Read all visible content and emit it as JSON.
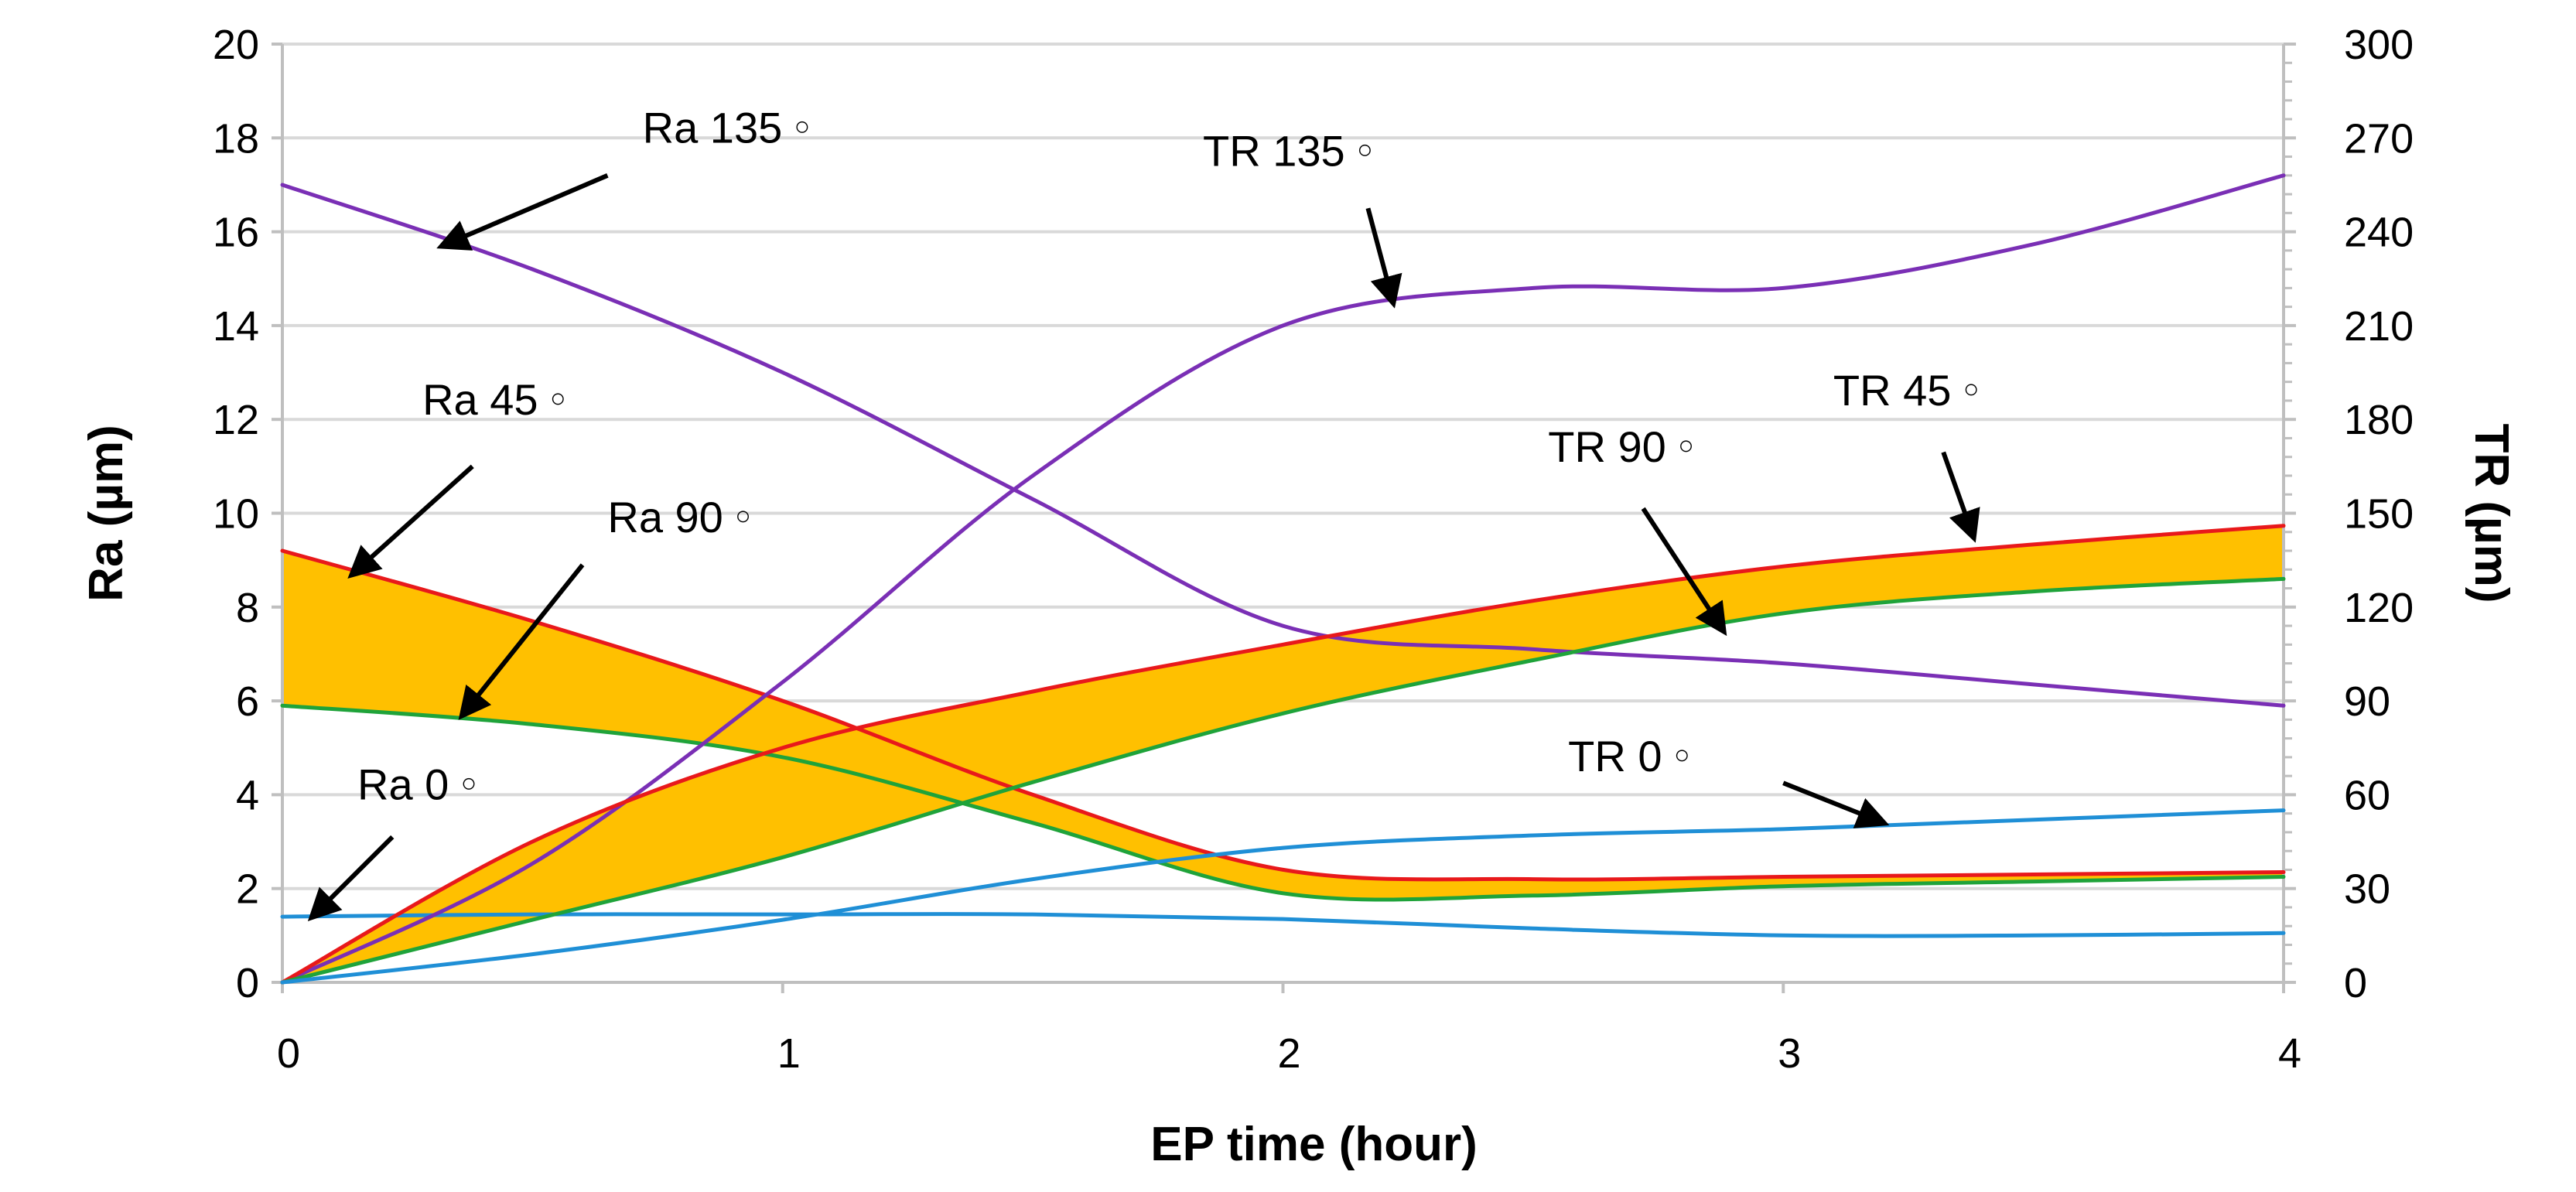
{
  "chart_data": {
    "type": "line",
    "title": "",
    "xlabel": "EP time (hour)",
    "ylabel": "Ra (µm)",
    "y2label": "TR (µm)",
    "xlim": [
      0,
      4
    ],
    "ylim": [
      0,
      20
    ],
    "y2lim": [
      0,
      300
    ],
    "grid": true,
    "x_ticks": [
      "0",
      "1",
      "2",
      "3",
      "4"
    ],
    "y_ticks": [
      "0",
      "2",
      "4",
      "6",
      "8",
      "10",
      "12",
      "14",
      "16",
      "18",
      "20"
    ],
    "y2_ticks": [
      "0",
      "30",
      "60",
      "90",
      "120",
      "150",
      "180",
      "210",
      "240",
      "270",
      "300"
    ],
    "series": [
      {
        "name": "Ra 135",
        "axis": "left",
        "color": "#7a2fb5",
        "x": [
          0,
          0.5,
          1,
          1.5,
          2,
          2.5,
          3,
          3.5,
          4
        ],
        "values": [
          17.0,
          15.2,
          13.0,
          10.3,
          7.6,
          7.1,
          6.8,
          6.35,
          5.9
        ]
      },
      {
        "name": "Ra 45",
        "axis": "left",
        "color": "#e8191b",
        "x": [
          0,
          0.5,
          1,
          1.5,
          2,
          2.5,
          3,
          3.5,
          4
        ],
        "values": [
          9.2,
          7.7,
          6.0,
          4.0,
          2.4,
          2.2,
          2.25,
          2.3,
          2.35
        ]
      },
      {
        "name": "Ra 90",
        "axis": "left",
        "color": "#1fa33a",
        "x": [
          0,
          0.5,
          1,
          1.5,
          2,
          2.5,
          3,
          3.5,
          4
        ],
        "values": [
          5.9,
          5.5,
          4.8,
          3.4,
          1.9,
          1.85,
          2.05,
          2.15,
          2.25
        ]
      },
      {
        "name": "Ra 0",
        "axis": "left",
        "color": "#1f8fd6",
        "x": [
          0,
          0.5,
          1,
          1.5,
          2,
          2.5,
          3,
          3.5,
          4
        ],
        "values": [
          1.4,
          1.45,
          1.45,
          1.45,
          1.35,
          1.15,
          1.0,
          1.0,
          1.05
        ]
      },
      {
        "name": "TR 135",
        "axis": "right",
        "color": "#7a2fb5",
        "x": [
          0,
          0.5,
          1,
          1.5,
          2,
          2.5,
          3,
          3.5,
          4
        ],
        "values": [
          0,
          38,
          96,
          162,
          210,
          222,
          222,
          236,
          258
        ]
      },
      {
        "name": "TR 45",
        "axis": "right",
        "color": "#e8191b",
        "x": [
          0,
          0.5,
          1,
          1.5,
          2,
          2.5,
          3,
          3.5,
          4
        ],
        "values": [
          0,
          45,
          75,
          93,
          108,
          122,
          133,
          140,
          146
        ]
      },
      {
        "name": "TR 90",
        "axis": "right",
        "color": "#1fa33a",
        "x": [
          0,
          0.5,
          1,
          1.5,
          2,
          2.5,
          3,
          3.5,
          4
        ],
        "values": [
          0,
          20,
          40,
          64,
          86,
          103,
          118,
          125,
          129
        ]
      },
      {
        "name": "TR 0",
        "axis": "right",
        "color": "#1f8fd6",
        "x": [
          0,
          0.5,
          1,
          1.5,
          2,
          2.5,
          3,
          3.5,
          4
        ],
        "values": [
          0,
          9,
          20,
          33,
          43,
          47,
          49,
          52,
          55
        ]
      }
    ],
    "fill_color": "#ffc000",
    "fills": [
      {
        "between": [
          "Ra 45",
          "Ra 90"
        ]
      },
      {
        "between": [
          "TR 45",
          "TR 90"
        ]
      }
    ],
    "annotations": [
      {
        "text": "Ra 135",
        "deg": "○",
        "label_x": 0.72,
        "label_y": 17.9,
        "arrow_from": [
          0.65,
          17.2
        ],
        "arrow_to": [
          0.32,
          15.7
        ]
      },
      {
        "text": "Ra 45",
        "deg": "○",
        "label_x": 0.28,
        "label_y": 12.1,
        "arrow_from": [
          0.38,
          11.0
        ],
        "arrow_to": [
          0.14,
          8.7
        ]
      },
      {
        "text": "Ra 90",
        "deg": "○",
        "label_x": 0.65,
        "label_y": 9.6,
        "arrow_from": [
          0.6,
          8.9
        ],
        "arrow_to": [
          0.36,
          5.7
        ]
      },
      {
        "text": "Ra 0",
        "deg": "○",
        "label_x": 0.15,
        "label_y": 3.9,
        "arrow_from": [
          0.22,
          3.1
        ],
        "arrow_to": [
          0.06,
          1.4
        ]
      },
      {
        "text": "TR 135",
        "deg": "○",
        "label_x": 1.84,
        "label_y": 17.4,
        "arrow_from": [
          2.17,
          16.5
        ],
        "arrow_to": [
          2.22,
          14.5
        ]
      },
      {
        "text": "TR 45",
        "deg": "○",
        "label_x": 3.1,
        "label_y": 12.3,
        "arrow_from": [
          3.32,
          11.3
        ],
        "arrow_to": [
          3.38,
          9.5
        ]
      },
      {
        "text": "TR 90",
        "deg": "○",
        "label_x": 2.53,
        "label_y": 11.1,
        "arrow_from": [
          2.72,
          10.1
        ],
        "arrow_to": [
          2.88,
          7.5
        ]
      },
      {
        "text": "TR 0",
        "deg": "○",
        "label_x": 2.57,
        "label_y": 4.5,
        "arrow_from": [
          3.0,
          4.25
        ],
        "arrow_to": [
          3.2,
          3.4
        ]
      }
    ]
  }
}
